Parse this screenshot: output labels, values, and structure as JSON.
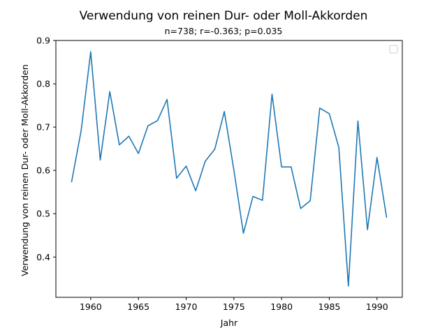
{
  "chart_data": {
    "type": "line",
    "title": "Verwendung von reinen Dur- oder Moll-Akkorden",
    "subtitle": "n=738; r=-0.363; p=0.035",
    "xlabel": "Jahr",
    "ylabel": "Verwendung von reinen Dur- oder Moll-Akkorden",
    "xlim": [
      1956.35,
      1992.65
    ],
    "ylim": [
      0.307,
      0.9
    ],
    "x_ticks": [
      1960,
      1965,
      1970,
      1975,
      1980,
      1985,
      1990
    ],
    "y_ticks": [
      0.4,
      0.5,
      0.6,
      0.7,
      0.8,
      0.9
    ],
    "x_tick_labels": [
      "1960",
      "1965",
      "1970",
      "1975",
      "1980",
      "1985",
      "1990"
    ],
    "y_tick_labels": [
      "0.4",
      "0.5",
      "0.6",
      "0.7",
      "0.8",
      "0.9"
    ],
    "grid": false,
    "legend": "top-right (empty)",
    "line_color": "#1f77b4",
    "series": [
      {
        "x": [
          1958,
          1959,
          1960,
          1961,
          1962,
          1963,
          1964,
          1965,
          1966,
          1967,
          1968,
          1969,
          1970,
          1971,
          1972,
          1973,
          1974,
          1975,
          1976,
          1977,
          1978,
          1979,
          1980,
          1981,
          1982,
          1983,
          1984,
          1985,
          1986,
          1987,
          1988,
          1989,
          1990,
          1991
        ],
        "values": [
          0.574,
          0.692,
          0.874,
          0.624,
          0.782,
          0.659,
          0.679,
          0.639,
          0.703,
          0.715,
          0.764,
          0.582,
          0.61,
          0.553,
          0.621,
          0.649,
          0.736,
          0.601,
          0.455,
          0.54,
          0.531,
          0.776,
          0.608,
          0.608,
          0.512,
          0.53,
          0.744,
          0.731,
          0.653,
          0.333,
          0.714,
          0.463,
          0.63,
          0.492
        ]
      }
    ]
  }
}
